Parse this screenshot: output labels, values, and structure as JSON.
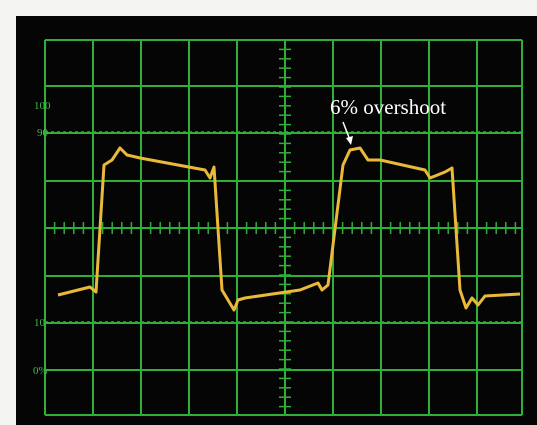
{
  "scale_labels": [
    "100",
    "90",
    "10",
    "0%"
  ],
  "annotation": "6% overshoot"
}
